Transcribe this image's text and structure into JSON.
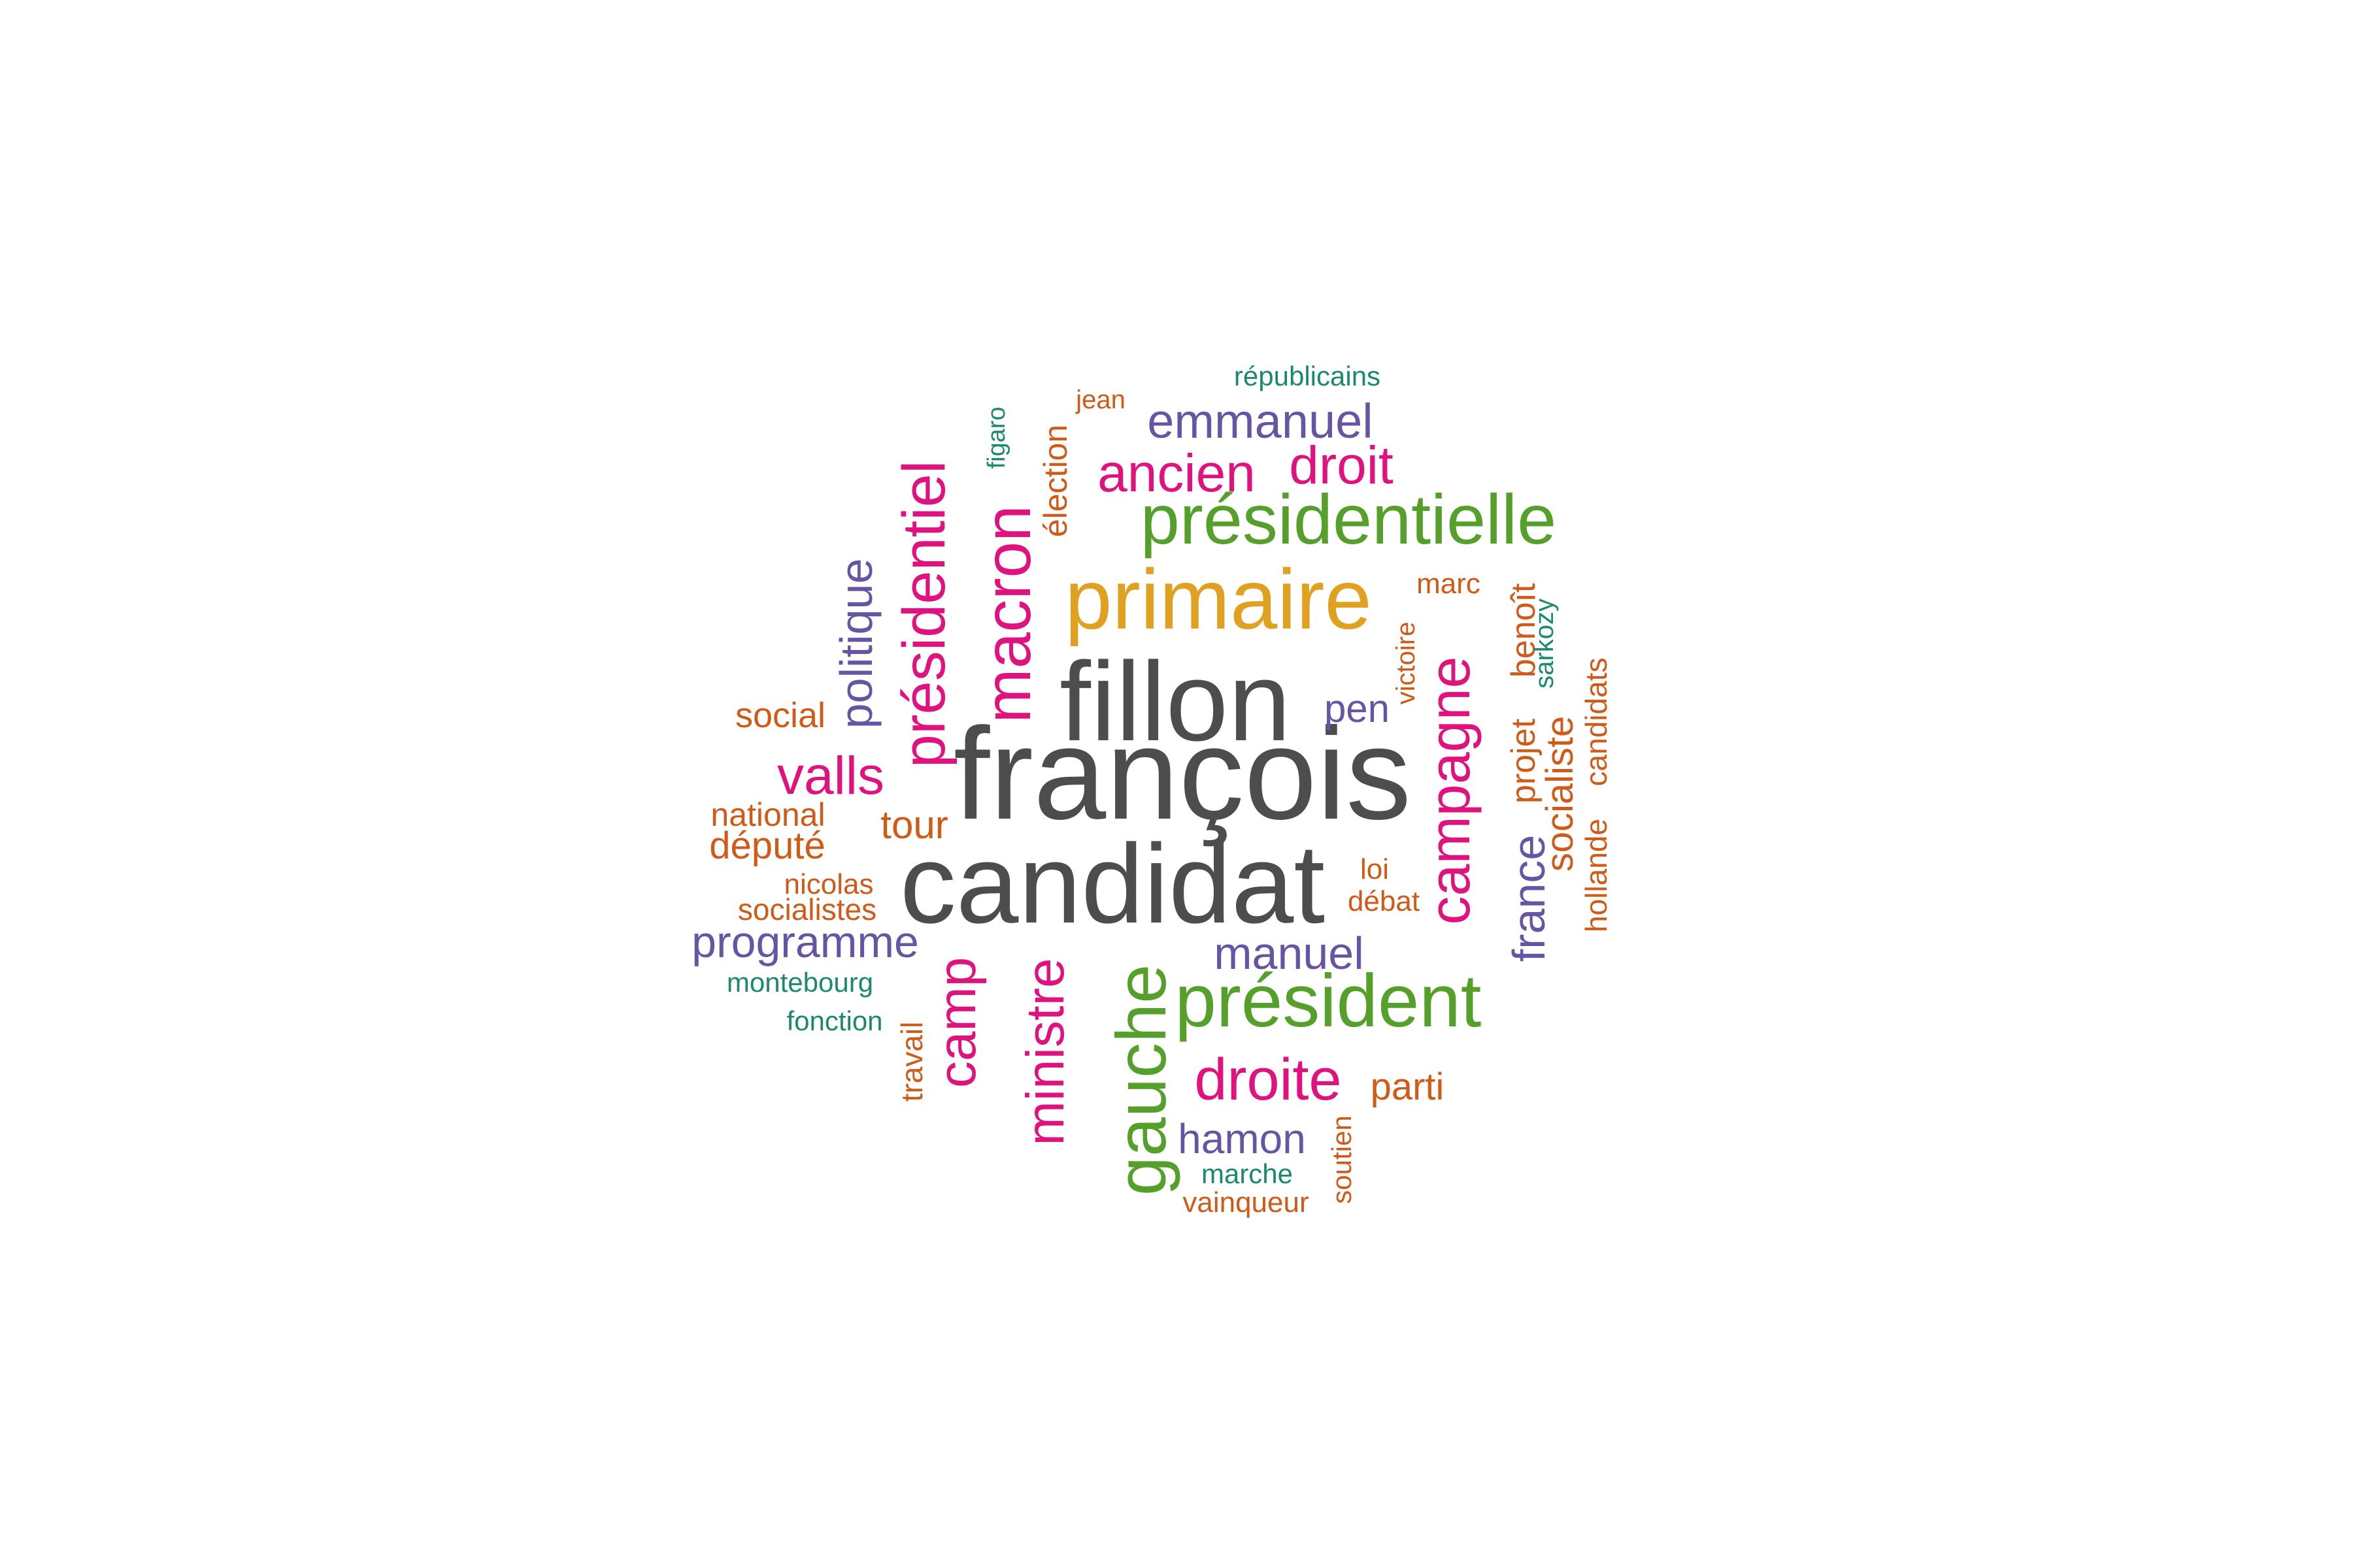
{
  "colors": {
    "gray": "#4d4d4d",
    "orange": "#e0a020",
    "green": "#55a02a",
    "magenta": "#e0127e",
    "purple": "#6655a5",
    "rust": "#d05a18",
    "teal": "#1b8a6b"
  },
  "words": [
    {
      "id": "francois",
      "text": "françois",
      "color": "gray"
    },
    {
      "id": "candidat",
      "text": "candidat",
      "color": "gray"
    },
    {
      "id": "fillon",
      "text": "fillon",
      "color": "gray"
    },
    {
      "id": "primaire",
      "text": "primaire",
      "color": "orange"
    },
    {
      "id": "presidentielle",
      "text": "présidentielle",
      "color": "green"
    },
    {
      "id": "president",
      "text": "président",
      "color": "green"
    },
    {
      "id": "gauche",
      "text": "gauche",
      "color": "green"
    },
    {
      "id": "macron",
      "text": "macron",
      "color": "magenta"
    },
    {
      "id": "presidentiel",
      "text": "présidentiel",
      "color": "magenta"
    },
    {
      "id": "campagne",
      "text": "campagne",
      "color": "magenta"
    },
    {
      "id": "ministre",
      "text": "ministre",
      "color": "magenta"
    },
    {
      "id": "droite",
      "text": "droite",
      "color": "magenta"
    },
    {
      "id": "ancien",
      "text": "ancien",
      "color": "magenta"
    },
    {
      "id": "droit",
      "text": "droit",
      "color": "magenta"
    },
    {
      "id": "valls",
      "text": "valls",
      "color": "magenta"
    },
    {
      "id": "camp",
      "text": "camp",
      "color": "magenta"
    },
    {
      "id": "emmanuel",
      "text": "emmanuel",
      "color": "purple"
    },
    {
      "id": "politique",
      "text": "politique",
      "color": "purple"
    },
    {
      "id": "programme",
      "text": "programme",
      "color": "purple"
    },
    {
      "id": "manuel",
      "text": "manuel",
      "color": "purple"
    },
    {
      "id": "hamon",
      "text": "hamon",
      "color": "purple"
    },
    {
      "id": "pen",
      "text": "pen",
      "color": "purple"
    },
    {
      "id": "france",
      "text": "france",
      "color": "purple"
    },
    {
      "id": "election",
      "text": "élection",
      "color": "rust"
    },
    {
      "id": "jean",
      "text": "jean",
      "color": "rust"
    },
    {
      "id": "marc",
      "text": "marc",
      "color": "rust"
    },
    {
      "id": "victoire",
      "text": "victoire",
      "color": "rust"
    },
    {
      "id": "projet",
      "text": "projet",
      "color": "rust"
    },
    {
      "id": "benoit",
      "text": "benoît",
      "color": "rust"
    },
    {
      "id": "socialiste",
      "text": "socialiste",
      "color": "rust"
    },
    {
      "id": "hollande",
      "text": "hollande",
      "color": "rust"
    },
    {
      "id": "candidats",
      "text": "candidats",
      "color": "rust"
    },
    {
      "id": "social",
      "text": "social",
      "color": "rust"
    },
    {
      "id": "national",
      "text": "national",
      "color": "rust"
    },
    {
      "id": "depute",
      "text": "député",
      "color": "rust"
    },
    {
      "id": "tour",
      "text": "tour",
      "color": "rust"
    },
    {
      "id": "nicolas",
      "text": "nicolas",
      "color": "rust"
    },
    {
      "id": "socialistes",
      "text": "socialistes",
      "color": "rust"
    },
    {
      "id": "loi",
      "text": "loi",
      "color": "rust"
    },
    {
      "id": "debat",
      "text": "débat",
      "color": "rust"
    },
    {
      "id": "parti",
      "text": "parti",
      "color": "rust"
    },
    {
      "id": "travail",
      "text": "travail",
      "color": "rust"
    },
    {
      "id": "vainqueur",
      "text": "vainqueur",
      "color": "rust"
    },
    {
      "id": "soutien",
      "text": "soutien",
      "color": "rust"
    },
    {
      "id": "republicains",
      "text": "républicains",
      "color": "teal"
    },
    {
      "id": "figaro",
      "text": "figaro",
      "color": "teal"
    },
    {
      "id": "sarkozy",
      "text": "sarkozy",
      "color": "teal"
    },
    {
      "id": "montebourg",
      "text": "montebourg",
      "color": "teal"
    },
    {
      "id": "fonction",
      "text": "fonction",
      "color": "teal"
    },
    {
      "id": "marche",
      "text": "marche",
      "color": "teal"
    }
  ]
}
